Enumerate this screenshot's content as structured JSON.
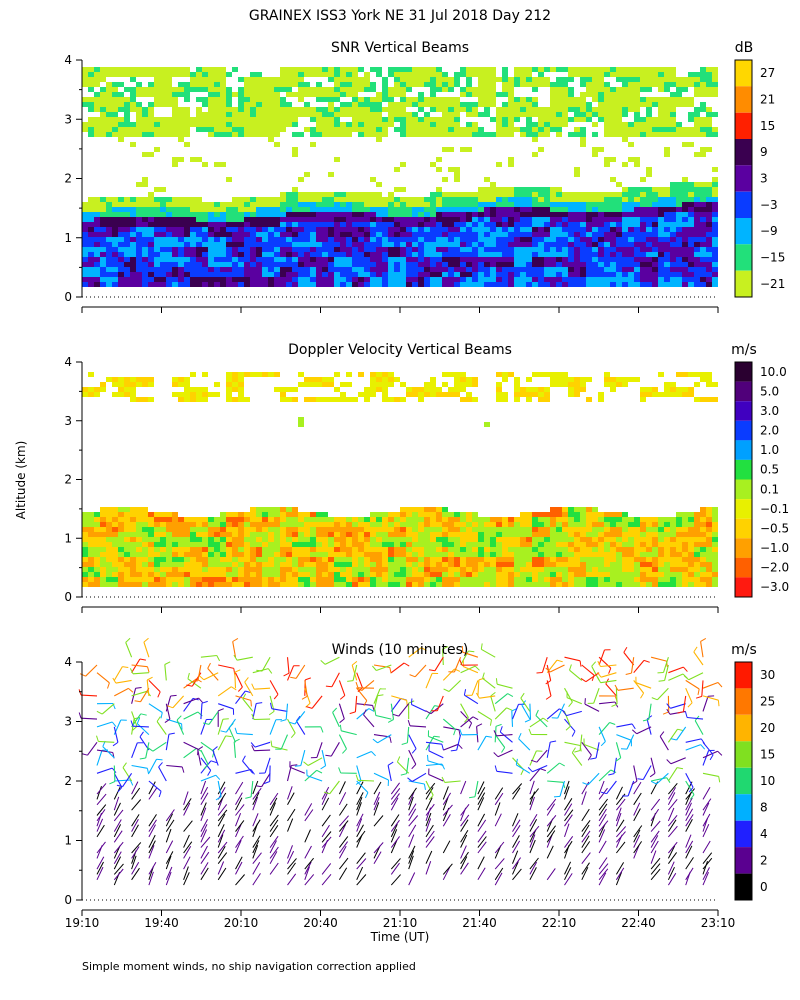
{
  "figure": {
    "title": "GRAINEX ISS3 York NE  31 Jul 2018 Day 212",
    "footnote": "Simple moment winds, no ship navigation correction applied",
    "ylabel": "Altitude (km)",
    "xlabel": "Time (UT)"
  },
  "chart_data": [
    {
      "type": "heatmap",
      "title": "SNR Vertical Beams",
      "y_ticks": [
        "0",
        "1",
        "2",
        "3",
        "4"
      ],
      "ylim": [
        0,
        4
      ],
      "colorbar": {
        "unit": "dB",
        "labels": [
          "27",
          "21",
          "15",
          "9",
          "3",
          "−3",
          "−9",
          "−15",
          "−21"
        ],
        "colors": [
          "#ffd700",
          "#ff8c00",
          "#ff2000",
          "#3a0050",
          "#5a00a0",
          "#0a3cff",
          "#00b4ff",
          "#22e07a",
          "#c8f020"
        ]
      }
    },
    {
      "type": "heatmap",
      "title": "Doppler Velocity Vertical Beams",
      "y_ticks": [
        "0",
        "1",
        "2",
        "3",
        "4"
      ],
      "ylim": [
        0,
        4
      ],
      "colorbar": {
        "unit": "m/s",
        "labels": [
          "10.0",
          "5.0",
          "3.0",
          "2.0",
          "1.0",
          "0.5",
          "0.1",
          "−0.1",
          "−0.5",
          "−1.0",
          "−2.0",
          "−3.0"
        ],
        "colors": [
          "#2a0030",
          "#50007a",
          "#4000c0",
          "#0a3cff",
          "#00a0ff",
          "#22e040",
          "#a8f020",
          "#e8f000",
          "#ffd200",
          "#ffa000",
          "#ff6000",
          "#ff1a10"
        ]
      }
    },
    {
      "type": "scatter",
      "title": "Winds (10 minutes)",
      "y_ticks": [
        "0",
        "1",
        "2",
        "3",
        "4"
      ],
      "ylim": [
        0,
        4
      ],
      "x_ticks": [
        "19:10",
        "19:40",
        "20:10",
        "20:40",
        "21:10",
        "21:40",
        "22:10",
        "22:40",
        "23:10"
      ],
      "colorbar": {
        "unit": "m/s",
        "labels": [
          "30",
          "25",
          "20",
          "15",
          "10",
          "8",
          "4",
          "2",
          "0"
        ],
        "colors": [
          "#ff1a00",
          "#ff7800",
          "#ffb400",
          "#80e020",
          "#20d870",
          "#00b0ff",
          "#2020ff",
          "#5a0090",
          "#000000"
        ]
      }
    }
  ]
}
